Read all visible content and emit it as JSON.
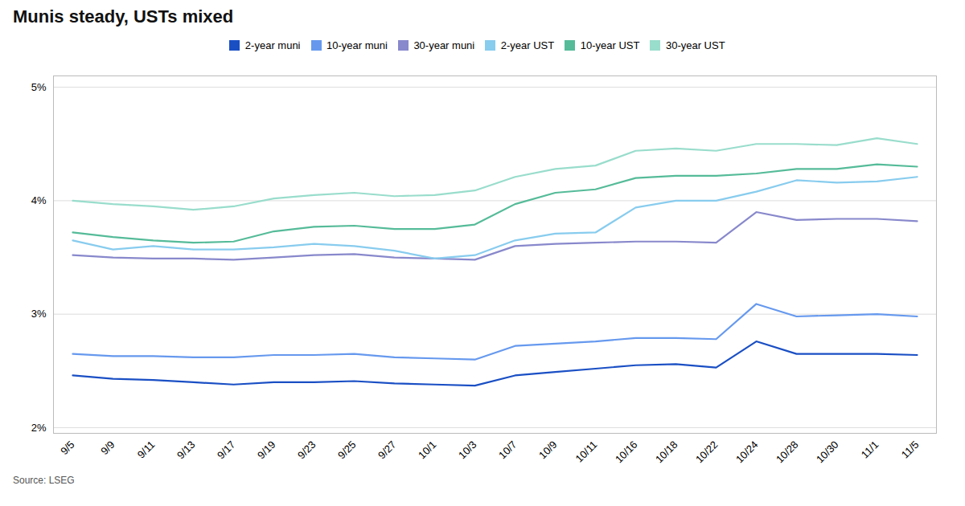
{
  "chart_data": {
    "type": "line",
    "title": "Munis steady, USTs mixed",
    "source": "Source: LSEG",
    "categories": [
      "9/5",
      "9/9",
      "9/11",
      "9/13",
      "9/17",
      "9/19",
      "9/23",
      "9/25",
      "9/27",
      "10/1",
      "10/3",
      "10/7",
      "10/9",
      "10/11",
      "10/16",
      "10/18",
      "10/22",
      "10/24",
      "10/28",
      "10/30",
      "11/1",
      "11/5"
    ],
    "series": [
      {
        "name": "2-year muni",
        "color": "#1a4fc4",
        "values": [
          2.46,
          2.43,
          2.42,
          2.4,
          2.38,
          2.4,
          2.4,
          2.41,
          2.39,
          2.38,
          2.37,
          2.46,
          2.49,
          2.52,
          2.55,
          2.56,
          2.53,
          2.76,
          2.65,
          2.65,
          2.65,
          2.64
        ]
      },
      {
        "name": "10-year muni",
        "color": "#6699ee",
        "values": [
          2.65,
          2.63,
          2.63,
          2.62,
          2.62,
          2.64,
          2.64,
          2.65,
          2.62,
          2.61,
          2.6,
          2.72,
          2.74,
          2.76,
          2.79,
          2.79,
          2.78,
          3.09,
          2.98,
          2.99,
          3.0,
          2.98
        ]
      },
      {
        "name": "30-year muni",
        "color": "#8888cc",
        "values": [
          3.52,
          3.5,
          3.49,
          3.49,
          3.48,
          3.5,
          3.52,
          3.53,
          3.5,
          3.49,
          3.48,
          3.6,
          3.62,
          3.63,
          3.64,
          3.64,
          3.63,
          3.9,
          3.83,
          3.84,
          3.84,
          3.82
        ]
      },
      {
        "name": "2-year UST",
        "color": "#88ccee",
        "values": [
          3.65,
          3.57,
          3.6,
          3.57,
          3.57,
          3.59,
          3.62,
          3.6,
          3.56,
          3.49,
          3.52,
          3.65,
          3.71,
          3.72,
          3.94,
          4.0,
          4.0,
          4.08,
          4.18,
          4.16,
          4.17,
          4.21
        ]
      },
      {
        "name": "10-year UST",
        "color": "#55bb99",
        "values": [
          3.72,
          3.68,
          3.65,
          3.63,
          3.64,
          3.73,
          3.77,
          3.78,
          3.75,
          3.75,
          3.79,
          3.97,
          4.07,
          4.1,
          4.2,
          4.22,
          4.22,
          4.24,
          4.28,
          4.28,
          4.32,
          4.3
        ]
      },
      {
        "name": "30-year UST",
        "color": "#99ddcc",
        "values": [
          4.0,
          3.97,
          3.95,
          3.92,
          3.95,
          4.02,
          4.05,
          4.07,
          4.04,
          4.05,
          4.09,
          4.21,
          4.28,
          4.31,
          4.44,
          4.46,
          4.44,
          4.5,
          4.5,
          4.49,
          4.55,
          4.5
        ]
      }
    ],
    "ylim": [
      1.95,
      5.1
    ],
    "yticks": [
      {
        "value": 2.0,
        "label": "2%"
      },
      {
        "value": 3.0,
        "label": "3%"
      },
      {
        "value": 4.0,
        "label": "4%"
      },
      {
        "value": 5.0,
        "label": "5%"
      }
    ],
    "grid": true,
    "legend": "top"
  }
}
